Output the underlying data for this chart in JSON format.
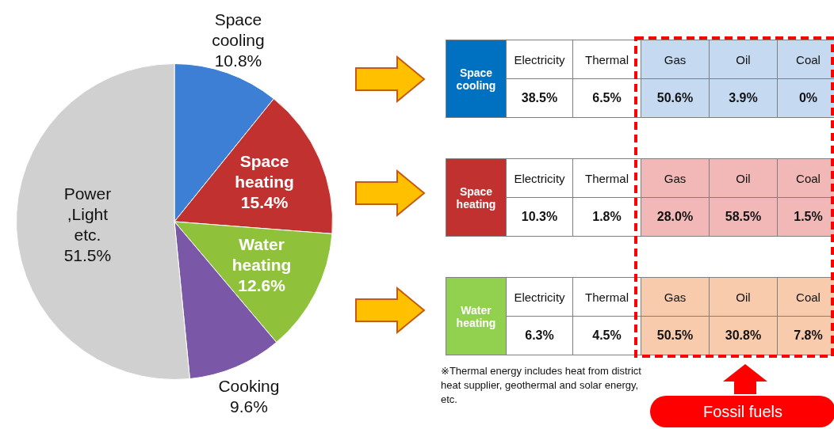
{
  "chart_data": [
    {
      "type": "pie",
      "categories": [
        "Space cooling",
        "Space heating",
        "Water heating",
        "Cooking",
        "Power ,Light etc."
      ],
      "values": [
        10.8,
        15.4,
        12.6,
        9.6,
        51.5
      ],
      "value_labels": [
        "10.8%",
        "15.4%",
        "12.6%",
        "9.6%",
        "51.5%"
      ],
      "colors": [
        "#3c7fd4",
        "#c0312f",
        "#8fc23a",
        "#7b57a8",
        "#d0d0d0"
      ]
    },
    {
      "type": "other",
      "title": "Space cooling",
      "color": "#0070c0",
      "categories": [
        "Electricity",
        "Thermal",
        "Gas",
        "Oil",
        "Coal"
      ],
      "values": [
        38.5,
        6.5,
        50.6,
        3.9,
        0
      ],
      "value_labels": [
        "38.5%",
        "6.5%",
        "50.6%",
        "3.9%",
        "0%"
      ],
      "colors": [
        "#ffffff",
        "#ffffff",
        "#c5d9f1",
        "#c5d9f1",
        "#c5d9f1"
      ]
    },
    {
      "type": "other",
      "title": "Space heating",
      "color": "#c0312f",
      "categories": [
        "Electricity",
        "Thermal",
        "Gas",
        "Oil",
        "Coal"
      ],
      "values": [
        10.3,
        1.8,
        28.0,
        58.5,
        1.5
      ],
      "value_labels": [
        "10.3%",
        "1.8%",
        "28.0%",
        "58.5%",
        "1.5%"
      ],
      "colors": [
        "#ffffff",
        "#ffffff",
        "#f2b8b8",
        "#f2b8b8",
        "#f2b8b8"
      ]
    },
    {
      "type": "other",
      "title": "Water heating",
      "color": "#92d050",
      "categories": [
        "Electricity",
        "Thermal",
        "Gas",
        "Oil",
        "Coal"
      ],
      "values": [
        6.3,
        4.5,
        50.5,
        30.8,
        7.8
      ],
      "value_labels": [
        "6.3%",
        "4.5%",
        "50.5%",
        "30.8%",
        "7.8%"
      ],
      "colors": [
        "#ffffff",
        "#ffffff",
        "#f8cbad",
        "#f8cbad",
        "#f8cbad"
      ],
      "annotations": [
        "※Thermal energy includes heat from district heat supplier, geothermal and solar energy, etc.",
        "Fossil fuels"
      ]
    }
  ]
}
